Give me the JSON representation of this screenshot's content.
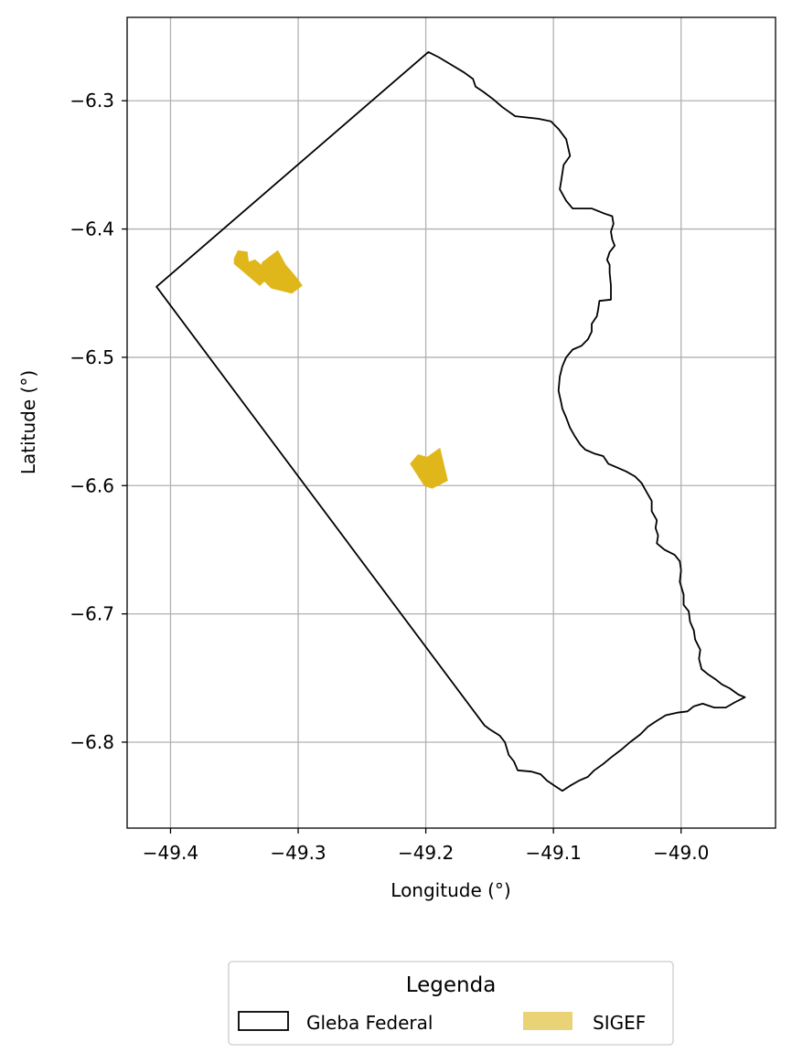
{
  "chart_data": {
    "type": "map",
    "xlabel": "Longitude (°)",
    "ylabel": "Latitude (°)",
    "xlim": [
      -49.434,
      -48.926
    ],
    "ylim": [
      -6.867,
      -6.235
    ],
    "grid": true,
    "x_ticks": [
      {
        "value": -49.4,
        "label": "−49.4"
      },
      {
        "value": -49.3,
        "label": "−49.3"
      },
      {
        "value": -49.2,
        "label": "−49.2"
      },
      {
        "value": -49.1,
        "label": "−49.1"
      },
      {
        "value": -49.0,
        "label": "−49.0"
      }
    ],
    "y_ticks": [
      {
        "value": -6.3,
        "label": "−6.3"
      },
      {
        "value": -6.4,
        "label": "−6.4"
      },
      {
        "value": -6.5,
        "label": "−6.5"
      },
      {
        "value": -6.6,
        "label": "−6.6"
      },
      {
        "value": -6.7,
        "label": "−6.7"
      },
      {
        "value": -6.8,
        "label": "−6.8"
      }
    ],
    "legend": {
      "title": "Legenda",
      "placement": "bottom-center",
      "entries": [
        "Gleba Federal",
        "SIGEF"
      ]
    },
    "layers": [
      {
        "name": "Gleba Federal",
        "style": "outline",
        "stroke": "#000000",
        "fill": "none",
        "polygons": [
          [
            [
              -49.411,
              -6.445
            ],
            [
              -49.198,
              -6.262
            ],
            [
              -49.19,
              -6.266
            ],
            [
              -49.18,
              -6.272
            ],
            [
              -49.17,
              -6.278
            ],
            [
              -49.163,
              -6.283
            ],
            [
              -49.161,
              -6.289
            ],
            [
              -49.155,
              -6.293
            ],
            [
              -49.147,
              -6.299
            ],
            [
              -49.14,
              -6.305
            ],
            [
              -49.13,
              -6.312
            ],
            [
              -49.112,
              -6.314
            ],
            [
              -49.102,
              -6.316
            ],
            [
              -49.096,
              -6.322
            ],
            [
              -49.09,
              -6.33
            ],
            [
              -49.087,
              -6.343
            ],
            [
              -49.092,
              -6.35
            ],
            [
              -49.094,
              -6.363
            ],
            [
              -49.095,
              -6.369
            ],
            [
              -49.09,
              -6.378
            ],
            [
              -49.085,
              -6.384
            ],
            [
              -49.07,
              -6.384
            ],
            [
              -49.06,
              -6.388
            ],
            [
              -49.054,
              -6.39
            ],
            [
              -49.053,
              -6.396
            ],
            [
              -49.055,
              -6.402
            ],
            [
              -49.054,
              -6.408
            ],
            [
              -49.052,
              -6.413
            ],
            [
              -49.056,
              -6.418
            ],
            [
              -49.058,
              -6.424
            ],
            [
              -49.056,
              -6.428
            ],
            [
              -49.056,
              -6.434
            ],
            [
              -49.055,
              -6.444
            ],
            [
              -49.055,
              -6.455
            ],
            [
              -49.064,
              -6.456
            ],
            [
              -49.065,
              -6.463
            ],
            [
              -49.066,
              -6.468
            ],
            [
              -49.07,
              -6.474
            ],
            [
              -49.07,
              -6.48
            ],
            [
              -49.073,
              -6.486
            ],
            [
              -49.078,
              -6.491
            ],
            [
              -49.085,
              -6.494
            ],
            [
              -49.09,
              -6.5
            ],
            [
              -49.093,
              -6.507
            ],
            [
              -49.095,
              -6.515
            ],
            [
              -49.096,
              -6.526
            ],
            [
              -49.094,
              -6.535
            ],
            [
              -49.093,
              -6.54
            ],
            [
              -49.09,
              -6.547
            ],
            [
              -49.087,
              -6.555
            ],
            [
              -49.083,
              -6.562
            ],
            [
              -49.079,
              -6.568
            ],
            [
              -49.075,
              -6.572
            ],
            [
              -49.068,
              -6.575
            ],
            [
              -49.061,
              -6.577
            ],
            [
              -49.057,
              -6.583
            ],
            [
              -49.05,
              -6.586
            ],
            [
              -49.043,
              -6.589
            ],
            [
              -49.036,
              -6.593
            ],
            [
              -49.031,
              -6.598
            ],
            [
              -49.027,
              -6.605
            ],
            [
              -49.023,
              -6.612
            ],
            [
              -49.023,
              -6.62
            ],
            [
              -49.019,
              -6.627
            ],
            [
              -49.02,
              -6.633
            ],
            [
              -49.018,
              -6.639
            ],
            [
              -49.019,
              -6.645
            ],
            [
              -49.013,
              -6.65
            ],
            [
              -49.005,
              -6.654
            ],
            [
              -49.001,
              -6.659
            ],
            [
              -49.0,
              -6.666
            ],
            [
              -49.001,
              -6.675
            ],
            [
              -48.998,
              -6.685
            ],
            [
              -48.998,
              -6.693
            ],
            [
              -48.994,
              -6.698
            ],
            [
              -48.993,
              -6.706
            ],
            [
              -48.99,
              -6.713
            ],
            [
              -48.989,
              -6.72
            ],
            [
              -48.985,
              -6.728
            ],
            [
              -48.986,
              -6.735
            ],
            [
              -48.984,
              -6.743
            ],
            [
              -48.979,
              -6.747
            ],
            [
              -48.973,
              -6.751
            ],
            [
              -48.968,
              -6.755
            ],
            [
              -48.962,
              -6.758
            ],
            [
              -48.955,
              -6.763
            ],
            [
              -48.95,
              -6.765
            ],
            [
              -48.958,
              -6.769
            ],
            [
              -48.965,
              -6.773
            ],
            [
              -48.974,
              -6.773
            ],
            [
              -48.983,
              -6.77
            ],
            [
              -48.99,
              -6.772
            ],
            [
              -48.995,
              -6.776
            ],
            [
              -49.003,
              -6.777
            ],
            [
              -49.012,
              -6.779
            ],
            [
              -49.02,
              -6.784
            ],
            [
              -49.026,
              -6.788
            ],
            [
              -49.032,
              -6.794
            ],
            [
              -49.04,
              -6.8
            ],
            [
              -49.047,
              -6.806
            ],
            [
              -49.055,
              -6.812
            ],
            [
              -49.061,
              -6.817
            ],
            [
              -49.068,
              -6.822
            ],
            [
              -49.073,
              -6.827
            ],
            [
              -49.08,
              -6.83
            ],
            [
              -49.087,
              -6.834
            ],
            [
              -49.093,
              -6.838
            ],
            [
              -49.099,
              -6.834
            ],
            [
              -49.105,
              -6.83
            ],
            [
              -49.11,
              -6.825
            ],
            [
              -49.117,
              -6.823
            ],
            [
              -49.128,
              -6.822
            ],
            [
              -49.131,
              -6.815
            ],
            [
              -49.135,
              -6.81
            ],
            [
              -49.138,
              -6.8
            ],
            [
              -49.142,
              -6.795
            ],
            [
              -49.15,
              -6.79
            ],
            [
              -49.154,
              -6.787
            ],
            [
              -49.411,
              -6.445
            ]
          ]
        ]
      },
      {
        "name": "SIGEF",
        "style": "filled",
        "fill": "#e0b71b",
        "legend_fill": "#ead377",
        "polygons": [
          [
            [
              -49.35,
              -6.423
            ],
            [
              -49.347,
              -6.417
            ],
            [
              -49.34,
              -6.418
            ],
            [
              -49.339,
              -6.426
            ],
            [
              -49.334,
              -6.424
            ],
            [
              -49.328,
              -6.429
            ],
            [
              -49.324,
              -6.438
            ],
            [
              -49.33,
              -6.444
            ],
            [
              -49.35,
              -6.427
            ]
          ],
          [
            [
              -49.328,
              -6.426
            ],
            [
              -49.316,
              -6.417
            ],
            [
              -49.31,
              -6.428
            ],
            [
              -49.303,
              -6.436
            ],
            [
              -49.297,
              -6.444
            ],
            [
              -49.305,
              -6.45
            ],
            [
              -49.321,
              -6.446
            ],
            [
              -49.331,
              -6.436
            ]
          ],
          [
            [
              -49.212,
              -6.583
            ],
            [
              -49.206,
              -6.576
            ],
            [
              -49.199,
              -6.578
            ],
            [
              -49.189,
              -6.571
            ],
            [
              -49.183,
              -6.596
            ],
            [
              -49.195,
              -6.602
            ],
            [
              -49.201,
              -6.6
            ]
          ]
        ]
      }
    ]
  }
}
